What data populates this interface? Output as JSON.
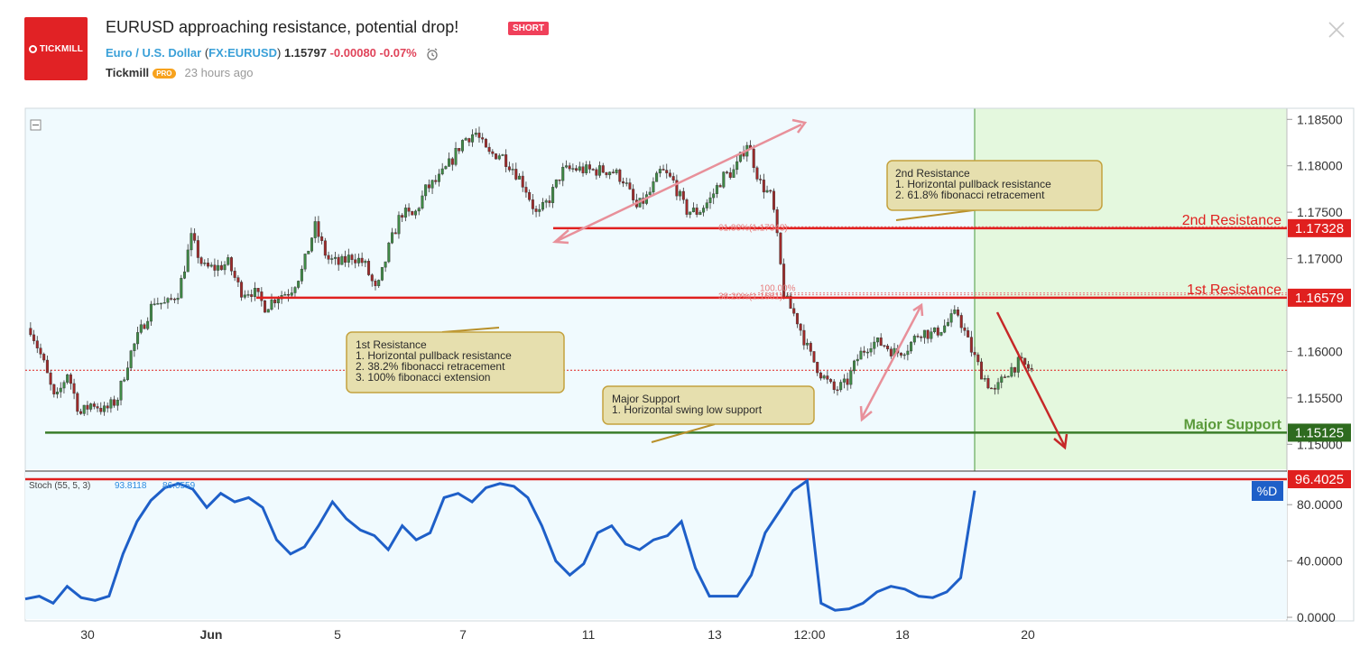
{
  "header": {
    "title": "EURUSD approaching resistance, potential drop!",
    "badge": "SHORT",
    "logo_text": "TICKMILL",
    "symbol_name": "Euro / U.S. Dollar",
    "symbol_code": "FX:EURUSD",
    "price": "1.15797",
    "change": "-0.00080",
    "change_pct": "-0.07%",
    "author": "Tickmill",
    "author_badge": "PRO",
    "time_ago": "23 hours ago"
  },
  "colors": {
    "accent_red": "#e0201f",
    "support_green": "#3b7d2a",
    "stoch_blue": "#1e5fc8",
    "bg": "#f0fafe"
  },
  "chart_data": {
    "type": "candlestick",
    "ylim": [
      1.1475,
      1.186
    ],
    "y_ticks": [
      "1.18500",
      "1.18000",
      "1.17500",
      "1.17000",
      "1.16000",
      "1.15500",
      "1.15000"
    ],
    "x_ticks": [
      "30",
      "Jun",
      "5",
      "7",
      "11",
      "13",
      "12:00",
      "18",
      "20"
    ],
    "close_path": [
      1.1625,
      1.159,
      1.1545,
      1.1578,
      1.1532,
      1.1545,
      1.1536,
      1.1548,
      1.1595,
      1.1625,
      1.1655,
      1.165,
      1.1665,
      1.1722,
      1.169,
      1.169,
      1.1695,
      1.1665,
      1.1665,
      1.1648,
      1.166,
      1.1665,
      1.1688,
      1.1735,
      1.17,
      1.1694,
      1.1703,
      1.1695,
      1.1663,
      1.1712,
      1.175,
      1.1745,
      1.1775,
      1.1785,
      1.1804,
      1.1828,
      1.1836,
      1.1812,
      1.1813,
      1.1798,
      1.1778,
      1.1745,
      1.1765,
      1.1794,
      1.1797,
      1.1795,
      1.1795,
      1.1795,
      1.1785,
      1.1754,
      1.1768,
      1.1795,
      1.1783,
      1.1752,
      1.175,
      1.1764,
      1.1788,
      1.1795,
      1.1826,
      1.1782,
      1.1765,
      1.1658,
      1.1635,
      1.1598,
      1.1575,
      1.1558,
      1.1565,
      1.1595,
      1.161,
      1.1608,
      1.1598,
      1.1605,
      1.1622,
      1.1618,
      1.1628,
      1.1642,
      1.1605,
      1.1575,
      1.1555,
      1.1578,
      1.1588,
      1.158
    ],
    "price_labels": [
      "1.17328",
      "1.16579",
      "1.15125"
    ],
    "current_price": 1.15797,
    "levels": [
      {
        "name": "2nd Resistance",
        "price": 1.17328
      },
      {
        "name": "1st Resistance",
        "price": 1.16579
      },
      {
        "name": "Major Support",
        "price": 1.15125
      }
    ],
    "fib_labels": [
      "61.80%(1.17343)",
      "38.20%(1.1661)",
      "100.00%"
    ],
    "annotations": [
      {
        "title": "2nd Resistance",
        "lines": [
          "1. Horizontal pullback resistance",
          "2. 61.8% fibonacci retracement"
        ]
      },
      {
        "title": "1st Resistance",
        "lines": [
          "1. Horizontal pullback resistance",
          "2. 38.2% fibonacci retracement",
          "3. 100% fibonacci extension"
        ]
      },
      {
        "title": "Major Support",
        "lines": [
          "1. Horizontal swing low support"
        ]
      }
    ],
    "stochastic": {
      "label": "Stoch (55, 5, 3)",
      "value_k": "93.8118",
      "value_d": "86.6559",
      "level_label": "96.4025",
      "legend": "%D",
      "ylim": [
        0,
        100
      ],
      "y_ticks": [
        "80.0000",
        "40.0000",
        "0.0000"
      ],
      "values": [
        13,
        15,
        10,
        22,
        14,
        12,
        15,
        45,
        68,
        83,
        92,
        95,
        91,
        78,
        88,
        82,
        85,
        78,
        55,
        45,
        50,
        65,
        82,
        70,
        62,
        58,
        48,
        65,
        55,
        60,
        85,
        88,
        82,
        92,
        95,
        93,
        85,
        65,
        40,
        30,
        38,
        60,
        65,
        52,
        48,
        55,
        58,
        68,
        35,
        15,
        15,
        15,
        30,
        60,
        75,
        90,
        97,
        10,
        5,
        6,
        10,
        18,
        22,
        20,
        15,
        14,
        18,
        28,
        90
      ]
    }
  }
}
